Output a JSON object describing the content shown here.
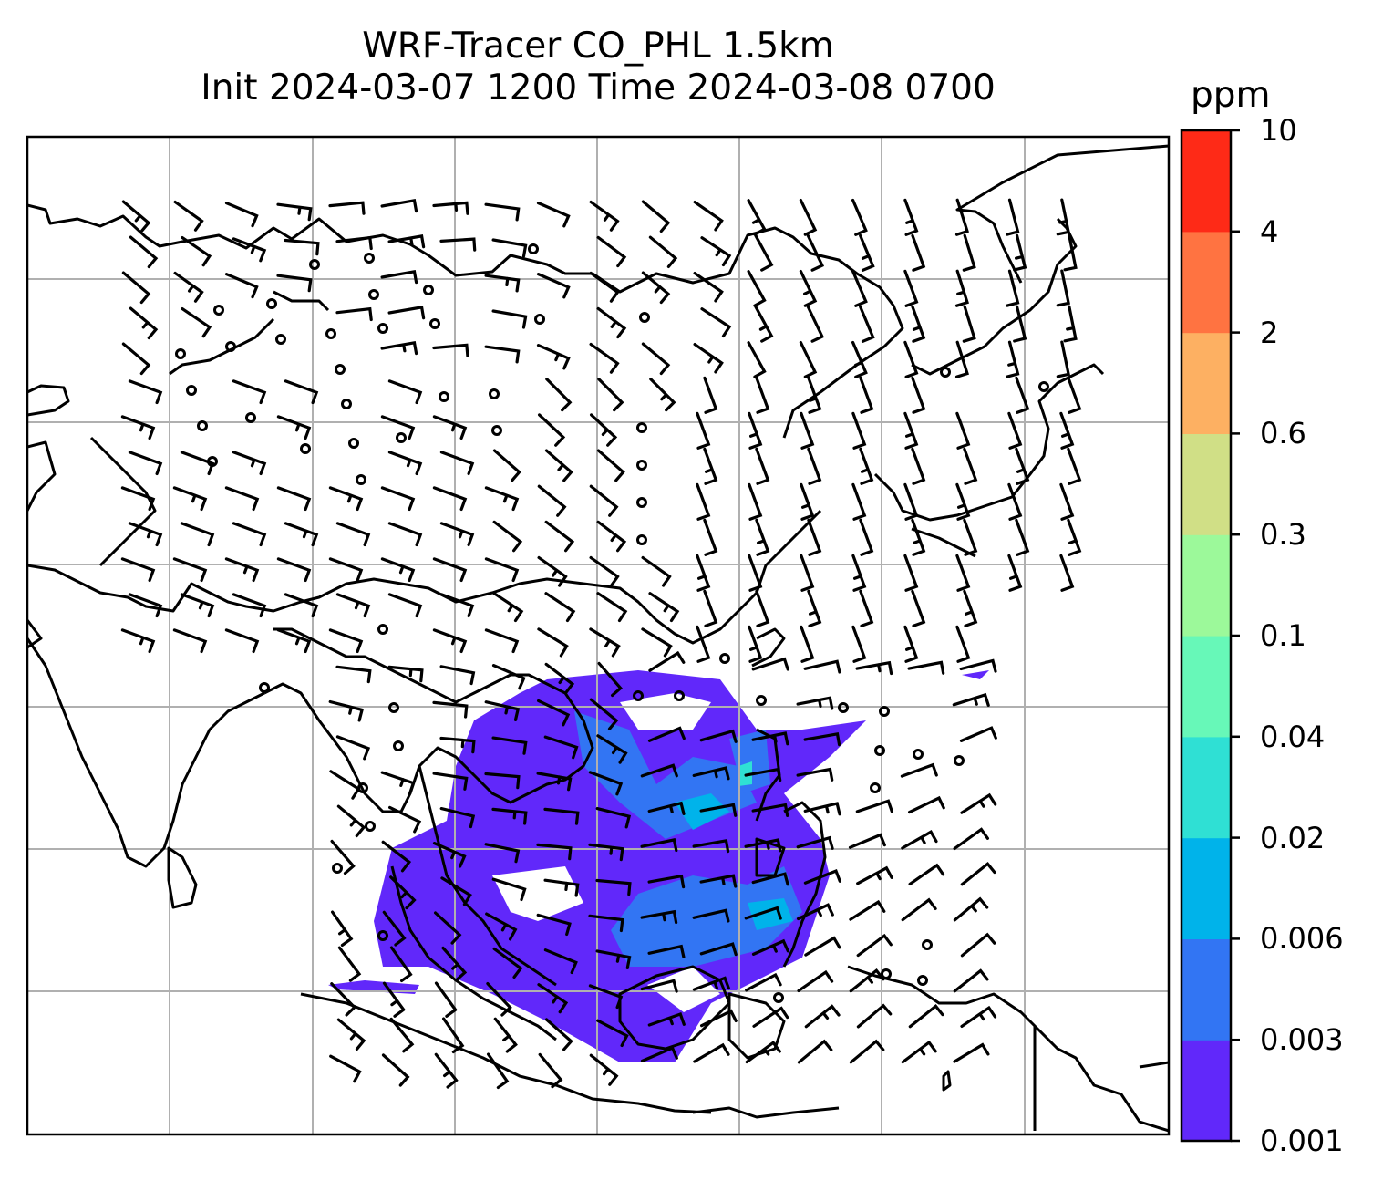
{
  "title": {
    "line1": "WRF-Tracer CO_PHL 1.5km",
    "line2": "Init 2024-03-07 1200 Time 2024-03-08 0700"
  },
  "colorbar": {
    "units": "ppm",
    "levels": [
      "0.001",
      "0.003",
      "0.006",
      "0.02",
      "0.04",
      "0.1",
      "0.3",
      "0.6",
      "2",
      "4",
      "10"
    ],
    "colors": [
      "#6128fa",
      "#3275f3",
      "#00b3ea",
      "#2fe0d4",
      "#67f8b8",
      "#9cf99a",
      "#d0df86",
      "#fdb062",
      "#ff7341",
      "#fe2a17"
    ]
  },
  "map": {
    "projection": "lat-lon grid with coastlines",
    "gridlines": true,
    "overlay": "wind barbs",
    "shaded_field": "CO tracer concentration"
  }
}
